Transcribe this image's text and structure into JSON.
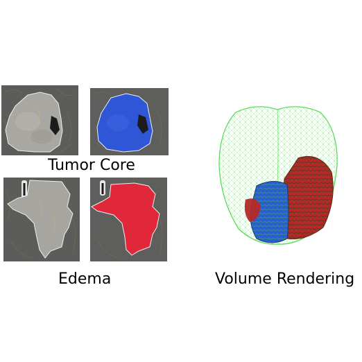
{
  "captions": {
    "tumor_core": "Tumor Core",
    "edema": "Edema",
    "volume_rendering": "Volume Rendering"
  },
  "colors": {
    "mri_background": "#5e5e5c",
    "tumor_core_mask": "#2f56d6",
    "edema_mask": "#e0283a",
    "segmentation_outline": "#f3f3f3",
    "brain_wireframe": "#3fd43f",
    "volume_red": "#b22a28",
    "volume_blue": "#2a5fd0"
  }
}
